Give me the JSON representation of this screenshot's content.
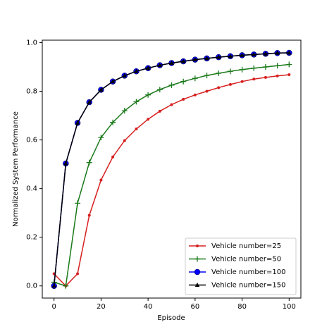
{
  "chart_data": {
    "type": "line",
    "x_label": "Episode",
    "y_label": "Normalized System Performance",
    "x": [
      0,
      5,
      10,
      15,
      20,
      25,
      30,
      35,
      40,
      45,
      50,
      55,
      60,
      65,
      70,
      75,
      80,
      85,
      90,
      95,
      100
    ],
    "series": [
      {
        "name": "Vehicle number=25",
        "color": "#d62020",
        "marker": "dot",
        "values": [
          0.05,
          0.0,
          0.05,
          0.29,
          0.435,
          0.53,
          0.597,
          0.645,
          0.685,
          0.718,
          0.745,
          0.767,
          0.785,
          0.8,
          0.815,
          0.828,
          0.84,
          0.85,
          0.857,
          0.863,
          0.868
        ]
      },
      {
        "name": "Vehicle number=50",
        "color": "#1a7a1a",
        "marker": "plus",
        "values": [
          0.015,
          0.0,
          0.34,
          0.507,
          0.61,
          0.672,
          0.72,
          0.757,
          0.785,
          0.807,
          0.825,
          0.84,
          0.853,
          0.865,
          0.874,
          0.882,
          0.889,
          0.895,
          0.9,
          0.905,
          0.91
        ]
      },
      {
        "name": "Vehicle number=100",
        "color": "#0000ff",
        "marker": "circle",
        "values": [
          0.0,
          0.503,
          0.67,
          0.755,
          0.806,
          0.84,
          0.864,
          0.882,
          0.895,
          0.907,
          0.916,
          0.923,
          0.93,
          0.935,
          0.94,
          0.944,
          0.948,
          0.951,
          0.954,
          0.957,
          0.958
        ]
      },
      {
        "name": "Vehicle number=150",
        "color": "#000000",
        "marker": "triangle",
        "values": [
          0.0,
          0.503,
          0.67,
          0.755,
          0.806,
          0.84,
          0.864,
          0.882,
          0.895,
          0.907,
          0.916,
          0.923,
          0.93,
          0.935,
          0.94,
          0.944,
          0.948,
          0.951,
          0.954,
          0.957,
          0.958
        ]
      }
    ],
    "xlim": [
      -5,
      105
    ],
    "ylim": [
      -0.05,
      1.01
    ],
    "xticks": [
      0,
      20,
      40,
      60,
      80,
      100
    ],
    "yticks": [
      {
        "value": 0,
        "label": "0.0"
      },
      0.2,
      0.4,
      0.6,
      0.8,
      {
        "value": 1,
        "label": "1.0"
      }
    ],
    "legend": "lower right",
    "grid": false
  }
}
